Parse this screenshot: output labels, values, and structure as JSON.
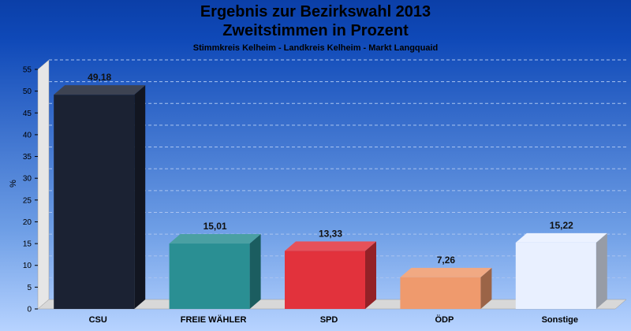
{
  "chart_data": {
    "type": "bar",
    "title": "Ergebnis zur Bezirkswahl 2013",
    "title_line2": "Zweitstimmen in Prozent",
    "subtitle": "Stimmkreis Kelheim - Landkreis Kelheim - Markt Langquaid",
    "ylabel": "%",
    "xlabel": "",
    "ylim": [
      0,
      55
    ],
    "yticks": [
      0,
      5,
      10,
      15,
      20,
      25,
      30,
      35,
      40,
      45,
      50,
      55
    ],
    "categories": [
      "CSU",
      "FREIE WÄHLER",
      "SPD",
      "ÖDP",
      "Sonstige"
    ],
    "values": [
      49.18,
      15.01,
      13.33,
      7.26,
      15.22
    ],
    "value_labels": [
      "49,18",
      "15,01",
      "13,33",
      "7,26",
      "15,22"
    ],
    "colors": [
      "#1b2233",
      "#2a8f93",
      "#e2323c",
      "#ef9a6d",
      "#e9f0ff"
    ],
    "grid": true,
    "legend": "none"
  }
}
